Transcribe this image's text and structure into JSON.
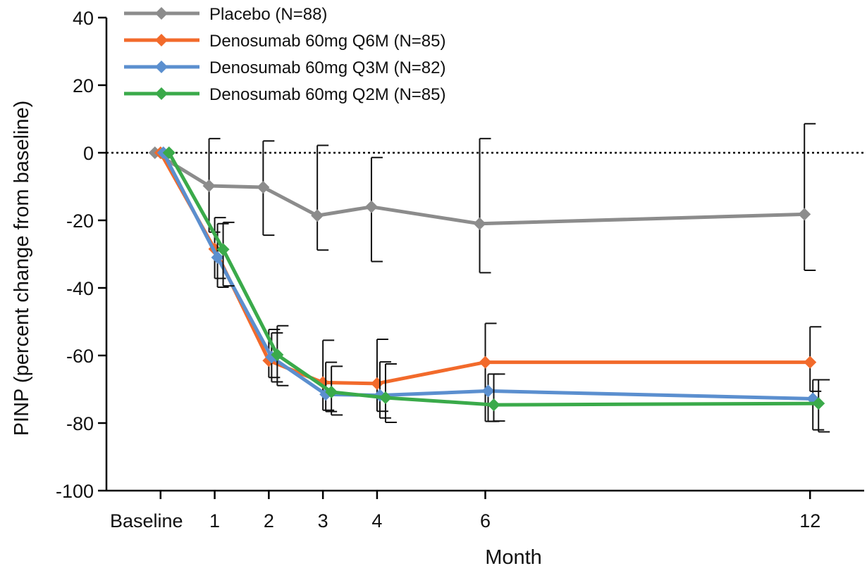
{
  "chart_data": {
    "type": "line",
    "title": "",
    "xlabel": "Month",
    "ylabel": "PINP (percent change from baseline)",
    "ylim": [
      -100,
      40
    ],
    "yticks": [
      40,
      20,
      0,
      -20,
      -40,
      -60,
      -80,
      -100
    ],
    "xticks": [
      {
        "value": 0,
        "label": "Baseline"
      },
      {
        "value": 1,
        "label": "1"
      },
      {
        "value": 2,
        "label": "2"
      },
      {
        "value": 3,
        "label": "3"
      },
      {
        "value": 4,
        "label": "4"
      },
      {
        "value": 6,
        "label": "6"
      },
      {
        "value": 12,
        "label": "12"
      }
    ],
    "xlim": [
      -1,
      13
    ],
    "reference_line": {
      "y": 0,
      "style": "dotted"
    },
    "grid": false,
    "legend_position": "top-left",
    "x": [
      0,
      1,
      2,
      3,
      4,
      6,
      12
    ],
    "series": [
      {
        "name": "Placebo (N=88)",
        "color": "#8c8c8c",
        "values": [
          0,
          -9.8,
          -10.2,
          -18.6,
          -16,
          -21,
          -18.2
        ],
        "err_low": [
          null,
          -23.5,
          -24.4,
          -28.8,
          -32.2,
          -35.5,
          -34.8
        ],
        "err_high": [
          null,
          4.2,
          3.5,
          2.2,
          -1.4,
          4.2,
          8.6
        ]
      },
      {
        "name": "Denosumab 60mg Q6M (N=85)",
        "color": "#f26a2b",
        "values": [
          0,
          -28.5,
          -61.5,
          -68,
          -68.3,
          -62,
          -62
        ],
        "err_low": [
          null,
          -37.2,
          -66.5,
          -76.2,
          -76.5,
          -79.5,
          -70.6
        ],
        "err_high": [
          null,
          -19.2,
          -52.3,
          -55.5,
          -55.2,
          -50.5,
          -51.5
        ]
      },
      {
        "name": "Denosumab 60mg Q3M (N=82)",
        "color": "#5b8fcf",
        "values": [
          0,
          -31,
          -60.5,
          -71.5,
          -71.8,
          -70.5,
          -72.8
        ],
        "err_low": [
          null,
          -39.8,
          -67.8,
          -76.6,
          -78.5,
          -79.5,
          -82
        ],
        "err_high": [
          null,
          -21,
          -53.3,
          -62,
          -61.9,
          -65.5,
          -67.2
        ]
      },
      {
        "name": "Denosumab 60mg Q2M (N=85)",
        "color": "#3aaa4a",
        "values": [
          0,
          -28.6,
          -59.8,
          -70.8,
          -72.5,
          -74.6,
          -74.2
        ],
        "err_low": [
          null,
          -39.4,
          -68.9,
          -77.6,
          -79.8,
          -79.4,
          -82.6
        ],
        "err_high": [
          null,
          -20.6,
          -51.2,
          -63.2,
          -62.5,
          -65.5,
          -67.2
        ]
      }
    ]
  }
}
